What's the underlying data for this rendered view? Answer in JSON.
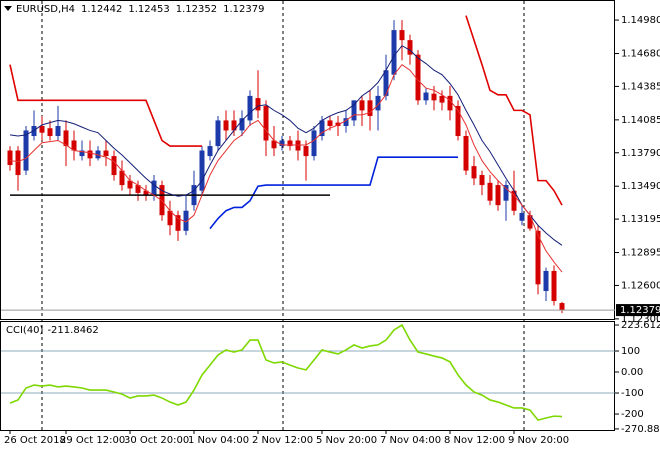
{
  "chart_data": [
    {
      "type": "candlestick",
      "title": "EURUSD,H4",
      "categories": [
        "26 Oct 2018",
        null,
        null,
        null,
        null,
        null,
        null,
        "29 Oct 12:00",
        null,
        null,
        null,
        null,
        null,
        null,
        null,
        "30 Oct 20:00",
        null,
        null,
        null,
        null,
        null,
        null,
        null,
        "1 Nov 04:00",
        null,
        null,
        null,
        null,
        null,
        null,
        null,
        "2 Nov 12:00",
        null,
        null,
        null,
        null,
        null,
        null,
        null,
        "5 Nov 20:00",
        null,
        null,
        null,
        null,
        null,
        null,
        null,
        "7 Nov 04:00",
        null,
        null,
        null,
        null,
        null,
        null,
        null,
        "8 Nov 12:00",
        null,
        null,
        null,
        null,
        null,
        null,
        null,
        "9 Nov 20:00",
        null,
        null,
        null,
        null,
        null,
        null
      ],
      "open": [
        1.1381,
        1.1381,
        1.1363,
        1.1394,
        1.1403,
        1.1401,
        1.1394,
        1.1399,
        1.139,
        1.1376,
        1.1381,
        1.1374,
        1.1381,
        1.1376,
        1.1363,
        1.1354,
        1.135,
        1.1345,
        1.1341,
        1.135,
        1.1327,
        1.1323,
        1.1309,
        1.1332,
        1.1345,
        1.1376,
        1.1385,
        1.1408,
        1.1408,
        1.1399,
        1.1408,
        1.1428,
        1.1421,
        1.139,
        1.1385,
        1.139,
        1.139,
        1.1385,
        1.1376,
        1.1394,
        1.1408,
        1.1406,
        1.1403,
        1.1408,
        1.1426,
        1.1426,
        1.1417,
        1.143,
        1.1449,
        1.1489,
        1.148,
        1.1467,
        1.1426,
        1.1432,
        1.143,
        1.143,
        1.1421,
        1.1394,
        1.1367,
        1.1359,
        1.1352,
        1.135,
        1.1336,
        1.1345,
        1.1318,
        1.1323,
        1.1309,
        1.1255,
        1.1273,
        1.12442
      ],
      "high": [
        1.1385,
        1.1385,
        1.1403,
        1.1417,
        1.1412,
        1.1408,
        1.1421,
        1.1408,
        1.1399,
        1.139,
        1.139,
        1.1385,
        1.139,
        1.1381,
        1.1372,
        1.1359,
        1.1354,
        1.135,
        1.1359,
        1.1354,
        1.1336,
        1.1327,
        1.1341,
        1.1363,
        1.1385,
        1.139,
        1.1412,
        1.1417,
        1.1417,
        1.1417,
        1.1435,
        1.1453,
        1.1426,
        1.1403,
        1.1394,
        1.1394,
        1.1399,
        1.139,
        1.1403,
        1.1412,
        1.1412,
        1.1412,
        1.1417,
        1.1426,
        1.143,
        1.1435,
        1.1439,
        1.1467,
        1.1498,
        1.1498,
        1.1485,
        1.1471,
        1.1437,
        1.1439,
        1.1435,
        1.1439,
        1.1426,
        1.1399,
        1.1376,
        1.1363,
        1.1359,
        1.1354,
        1.1354,
        1.1363,
        1.1332,
        1.1327,
        1.1314,
        1.1276,
        1.1278,
        1.12453
      ],
      "low": [
        1.1363,
        1.1345,
        1.1359,
        1.139,
        1.139,
        1.139,
        1.139,
        1.1367,
        1.1372,
        1.1372,
        1.1367,
        1.1372,
        1.1367,
        1.1354,
        1.1345,
        1.1341,
        1.1336,
        1.1336,
        1.1336,
        1.1318,
        1.1305,
        1.13,
        1.1305,
        1.1327,
        1.1341,
        1.1372,
        1.1381,
        1.139,
        1.1394,
        1.1394,
        1.1403,
        1.141,
        1.1376,
        1.1376,
        1.1381,
        1.1381,
        1.1372,
        1.1354,
        1.1372,
        1.139,
        1.1399,
        1.1394,
        1.1397,
        1.1403,
        1.1403,
        1.1399,
        1.1399,
        1.1426,
        1.1444,
        1.1462,
        1.1458,
        1.1422,
        1.1422,
        1.1417,
        1.1417,
        1.1408,
        1.139,
        1.1359,
        1.135,
        1.1341,
        1.1332,
        1.1327,
        1.1318,
        1.1323,
        1.1314,
        1.1309,
        1.1252,
        1.1246,
        1.1242,
        1.12352
      ],
      "close": [
        1.1368,
        1.1359,
        1.1399,
        1.1403,
        1.1397,
        1.1394,
        1.1403,
        1.1385,
        1.1381,
        1.1381,
        1.1374,
        1.1381,
        1.1376,
        1.1359,
        1.135,
        1.1347,
        1.1343,
        1.1341,
        1.1354,
        1.1323,
        1.1314,
        1.1309,
        1.1327,
        1.135,
        1.1381,
        1.1385,
        1.1408,
        1.1399,
        1.1399,
        1.141,
        1.143,
        1.1417,
        1.139,
        1.1383,
        1.139,
        1.1385,
        1.1381,
        1.1376,
        1.1399,
        1.1408,
        1.1403,
        1.1403,
        1.141,
        1.1426,
        1.1417,
        1.1412,
        1.143,
        1.1453,
        1.1489,
        1.148,
        1.1467,
        1.1426,
        1.1433,
        1.1426,
        1.1424,
        1.1417,
        1.1394,
        1.1363,
        1.1356,
        1.135,
        1.1336,
        1.1332,
        1.135,
        1.1327,
        1.1325,
        1.1311,
        1.1261,
        1.1273,
        1.1246,
        1.12379
      ],
      "up_color": "#1c3aa9",
      "down_color": "#d40000",
      "series": [
        {
          "color": "#e00000",
          "values": [
            1.1458,
            1.1426,
            1.1426,
            1.1426,
            1.1426,
            1.1426,
            1.1426,
            1.1426,
            1.1426,
            1.1426,
            1.1426,
            1.1426,
            1.1426,
            1.1426,
            1.1426,
            1.1426,
            1.1426,
            1.1426,
            1.1408,
            1.139,
            1.1385,
            1.1385,
            1.1385,
            1.1385,
            1.1385,
            null,
            null,
            null,
            null,
            null,
            null,
            null,
            null,
            null,
            null,
            null,
            null,
            null,
            null,
            null,
            null,
            null,
            null,
            null,
            null,
            null,
            null,
            null,
            null,
            null,
            null,
            null,
            null,
            null,
            null,
            null,
            null,
            1.1502,
            1.148,
            1.1458,
            1.1435,
            1.1431,
            1.1431,
            1.1417,
            1.1417,
            1.1413,
            1.1354,
            1.1354,
            1.1345,
            1.1332
          ]
        },
        {
          "color": "#0022dd",
          "values": [
            null,
            null,
            null,
            null,
            null,
            null,
            null,
            null,
            null,
            null,
            null,
            null,
            null,
            null,
            null,
            null,
            null,
            null,
            null,
            null,
            null,
            null,
            null,
            null,
            null,
            1.1311,
            1.132,
            1.1327,
            1.133,
            1.133,
            1.1336,
            1.1349,
            1.135,
            1.135,
            1.135,
            1.135,
            1.135,
            1.135,
            1.135,
            1.135,
            1.135,
            1.135,
            1.135,
            1.135,
            1.135,
            1.135,
            1.1375,
            1.1375,
            1.1375,
            1.1375,
            1.1375,
            1.1375,
            1.1375,
            1.1375,
            1.1375,
            1.1375,
            1.1375,
            null,
            null,
            null,
            null,
            null,
            null,
            null,
            null,
            null,
            null,
            null,
            null,
            null
          ]
        },
        {
          "color": "#000000",
          "values": [
            1.1341,
            1.1341,
            1.1341,
            1.1341,
            1.1341,
            1.1341,
            1.1341,
            1.1341,
            1.1341,
            1.1341,
            1.1341,
            1.1341,
            1.1341,
            1.1341,
            1.1341,
            1.1341,
            1.1341,
            1.1341,
            1.1341,
            1.1341,
            1.1341,
            1.1341,
            1.1341,
            1.1341,
            1.1341,
            1.1341,
            1.1341,
            1.1341,
            1.1341,
            1.1341,
            1.1341,
            1.1341,
            1.1341,
            1.1341,
            1.1341,
            1.1341,
            1.1341,
            1.1341,
            1.1341,
            1.1341,
            1.1341,
            null,
            null,
            null,
            null,
            null,
            null,
            null,
            null,
            null,
            null,
            null,
            null,
            null,
            null,
            null,
            null,
            null,
            null,
            null,
            null,
            null,
            null,
            null,
            null,
            null,
            null,
            null,
            null,
            null
          ]
        },
        {
          "color": "#141e78",
          "values": [
            1.1395,
            1.1394,
            1.1395,
            1.1399,
            1.1404,
            1.1406,
            1.1408,
            1.1407,
            1.1405,
            1.1402,
            1.1399,
            1.1397,
            1.139,
            1.1383,
            1.1377,
            1.137,
            1.1363,
            1.1356,
            1.135,
            1.1345,
            1.1342,
            1.134,
            1.1341,
            1.1345,
            1.1354,
            1.1368,
            1.1381,
            1.139,
            1.1399,
            1.1408,
            1.1415,
            1.1421,
            1.1422,
            1.1417,
            1.1413,
            1.1408,
            1.1401,
            1.1397,
            1.1401,
            1.1408,
            1.1412,
            1.1415,
            1.1417,
            1.1422,
            1.143,
            1.1435,
            1.1442,
            1.1453,
            1.1466,
            1.1475,
            1.1471,
            1.1464,
            1.1459,
            1.1453,
            1.1449,
            1.1441,
            1.1431,
            1.1417,
            1.1404,
            1.139,
            1.138,
            1.1368,
            1.1356,
            1.1345,
            1.1332,
            1.1323,
            1.1314,
            1.1307,
            1.1301,
            1.1296
          ]
        },
        {
          "color": "#e83030",
          "values": [
            1.1372,
            1.1371,
            1.1374,
            1.1381,
            1.1388,
            1.1389,
            1.139,
            1.1386,
            1.1381,
            1.138,
            1.1379,
            1.1377,
            1.1375,
            1.1371,
            1.1363,
            1.1354,
            1.135,
            1.1345,
            1.1341,
            1.1336,
            1.1327,
            1.132,
            1.1317,
            1.1323,
            1.1341,
            1.1359,
            1.1372,
            1.1381,
            1.139,
            1.1395,
            1.1404,
            1.1408,
            1.1399,
            1.139,
            1.1386,
            1.1386,
            1.1386,
            1.1386,
            1.139,
            1.1397,
            1.1401,
            1.1404,
            1.1408,
            1.1413,
            1.1413,
            1.1415,
            1.1422,
            1.1431,
            1.1449,
            1.1458,
            1.1453,
            1.1444,
            1.1437,
            1.1435,
            1.1431,
            1.1426,
            1.1417,
            1.1404,
            1.1386,
            1.1372,
            1.1362,
            1.1354,
            1.1347,
            1.1341,
            1.1332,
            1.1323,
            1.1305,
            1.1291,
            1.1281,
            1.1272
          ]
        }
      ],
      "ylim": [
        1.1229,
        1.1516
      ],
      "yticks": [
        {
          "value": 1.1498,
          "label": "1.14980"
        },
        {
          "value": 1.1468,
          "label": "1.14680"
        },
        {
          "value": 1.14385,
          "label": "1.14385"
        },
        {
          "value": 1.14085,
          "label": "1.14085"
        },
        {
          "value": 1.1379,
          "label": "1.13790"
        },
        {
          "value": 1.1349,
          "label": "1.13490"
        },
        {
          "value": 1.13195,
          "label": "1.13195"
        },
        {
          "value": 1.12895,
          "label": "1.12895"
        },
        {
          "value": 1.126,
          "label": "1.12600"
        },
        {
          "value": 1.123,
          "label": "1.12300"
        }
      ]
    },
    {
      "type": "line",
      "title": "CCI(40)",
      "series": [
        {
          "color": "#7ed800",
          "values": [
            -148,
            -133,
            -76,
            -62,
            -67,
            -62,
            -71,
            -67,
            -71,
            -76,
            -86,
            -86,
            -86,
            -95,
            -105,
            -124,
            -114,
            -114,
            -110,
            -124,
            -143,
            -157,
            -143,
            -86,
            -14,
            33,
            81,
            105,
            95,
            105,
            152,
            152,
            57,
            43,
            48,
            33,
            19,
            10,
            57,
            105,
            95,
            86,
            105,
            129,
            114,
            124,
            129,
            152,
            200,
            223.6122,
            152,
            95,
            86,
            76,
            67,
            48,
            -14,
            -62,
            -95,
            -110,
            -133,
            -143,
            -157,
            -171,
            -171,
            -181,
            -229,
            -219,
            -210,
            -211.8462
          ]
        }
      ],
      "ylim": [
        -276,
        238
      ],
      "yticks": [
        223.6122,
        100,
        {
          "value": 0,
          "label": "0.00"
        },
        -100,
        -200,
        -270.8831
      ],
      "levels": [
        100,
        -100
      ]
    }
  ]
}
